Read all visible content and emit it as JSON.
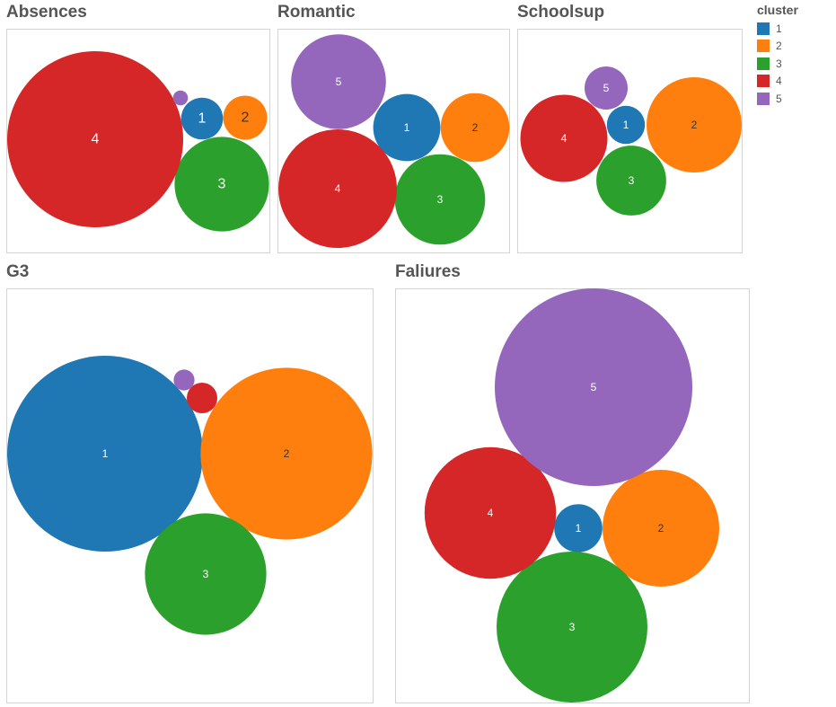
{
  "legend": {
    "title": "cluster",
    "items": [
      {
        "label": "1",
        "color": "#1f77b4"
      },
      {
        "label": "2",
        "color": "#ff7f0e"
      },
      {
        "label": "3",
        "color": "#2ca02c"
      },
      {
        "label": "4",
        "color": "#d62728"
      },
      {
        "label": "5",
        "color": "#9467bd"
      }
    ]
  },
  "chart_data": [
    {
      "type": "bubble",
      "title": "Absences",
      "series": [
        {
          "cluster": "1",
          "label": "1",
          "size": 0.0563
        },
        {
          "cluster": "2",
          "label": "2",
          "size": 0.0625
        },
        {
          "cluster": "3",
          "label": "3",
          "size": 0.2884
        },
        {
          "cluster": "4",
          "label": "4",
          "size": 1.0
        },
        {
          "cluster": "5",
          "label": "",
          "size": 0.0072
        }
      ]
    },
    {
      "type": "bubble",
      "title": "Romantic",
      "series": [
        {
          "cluster": "1",
          "label": "1",
          "size": 0.3218
        },
        {
          "cluster": "2",
          "label": "2",
          "size": 0.3372
        },
        {
          "cluster": "3",
          "label": "3",
          "size": 0.5803
        },
        {
          "cluster": "4",
          "label": "4",
          "size": 1.0
        },
        {
          "cluster": "5",
          "label": "5",
          "size": 0.6391
        }
      ]
    },
    {
      "type": "bubble",
      "title": "Schoolsup",
      "series": [
        {
          "cluster": "1",
          "label": "1",
          "size": 0.16
        },
        {
          "cluster": "2",
          "label": "2",
          "size": 1.0
        },
        {
          "cluster": "3",
          "label": "3",
          "size": 0.5374
        },
        {
          "cluster": "4",
          "label": "4",
          "size": 0.8391
        },
        {
          "cluster": "5",
          "label": "5",
          "size": 0.2046
        }
      ]
    },
    {
      "type": "bubble",
      "title": "G3",
      "series": [
        {
          "cluster": "1",
          "label": "1",
          "size": 1.0
        },
        {
          "cluster": "2",
          "label": "2",
          "size": 0.7691
        },
        {
          "cluster": "3",
          "label": "3",
          "size": 0.3846
        },
        {
          "cluster": "4",
          "label": "",
          "size": 0.0243
        },
        {
          "cluster": "5",
          "label": "",
          "size": 0.0113
        }
      ]
    },
    {
      "type": "bubble",
      "title": "Faliures",
      "series": [
        {
          "cluster": "1",
          "label": "1",
          "size": 0.0592
        },
        {
          "cluster": "2",
          "label": "2",
          "size": 0.3492
        },
        {
          "cluster": "3",
          "label": "3",
          "size": 0.5834
        },
        {
          "cluster": "4",
          "label": "4",
          "size": 0.4426
        },
        {
          "cluster": "5",
          "label": "5",
          "size": 1.0
        }
      ]
    }
  ]
}
